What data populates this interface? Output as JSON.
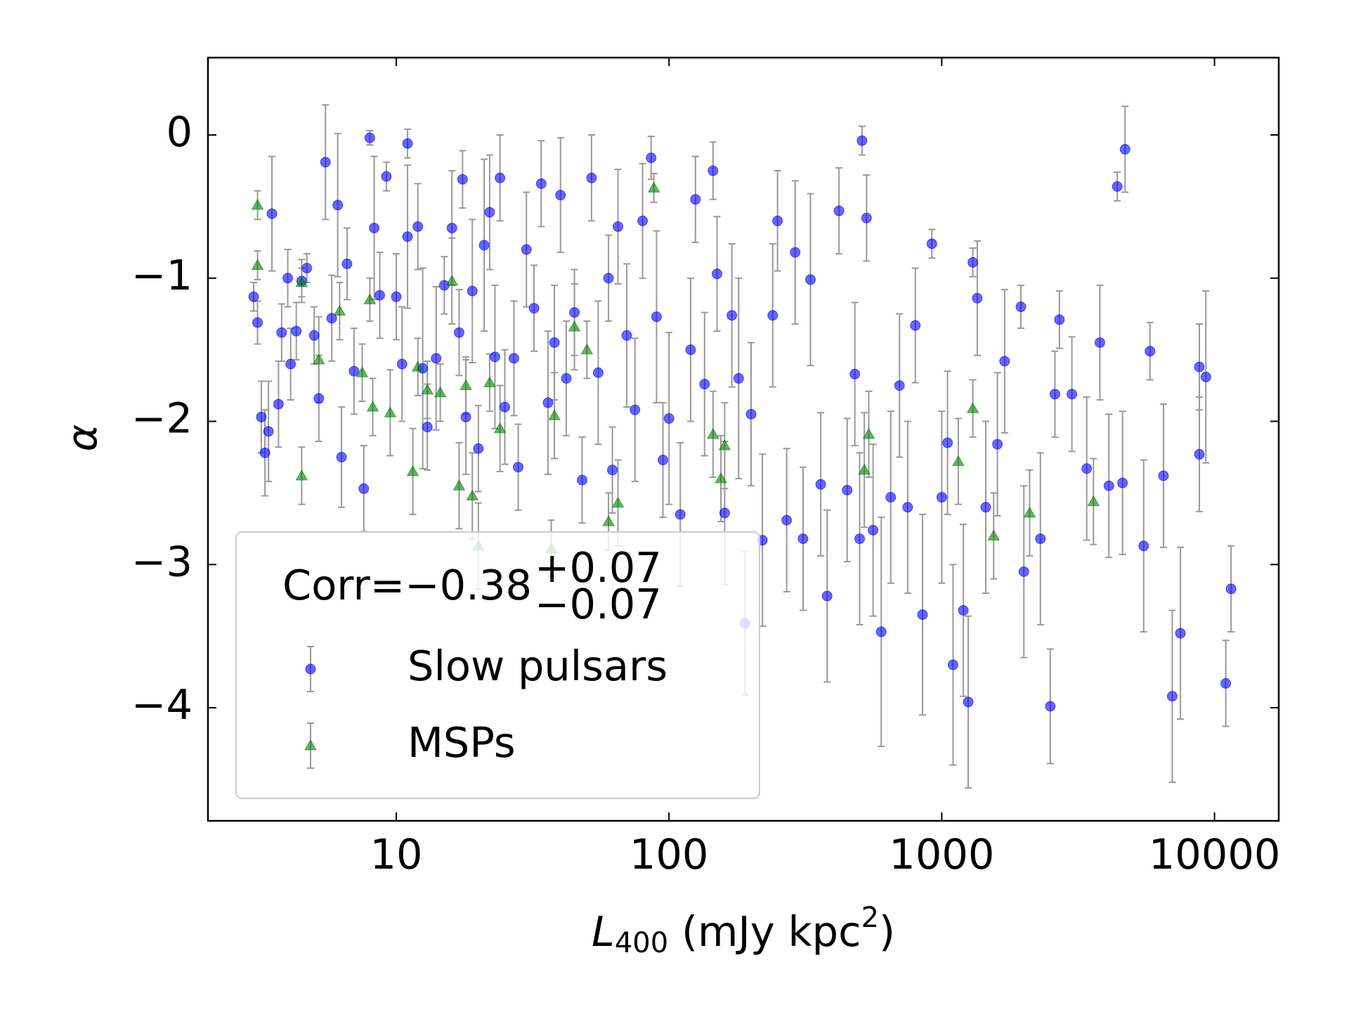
{
  "chart_data": {
    "type": "scatter",
    "xscale": "log",
    "xlabel": {
      "symbol": "L",
      "subscript": "400",
      "unit": " (mJy kpc",
      "superscript": "2",
      "close": ")"
    },
    "ylabel": "α",
    "xlim": [
      2.04,
      17200
    ],
    "ylim": [
      -4.79,
      0.54
    ],
    "xticks": [
      10,
      100,
      1000,
      10000
    ],
    "yticks": [
      0,
      {
        "value": -1,
        "label": "−1"
      },
      {
        "value": -2,
        "label": "−2"
      },
      {
        "value": -3,
        "label": "−3"
      },
      {
        "value": -4,
        "label": "−4"
      }
    ],
    "legend": "lower left",
    "legend_title": {
      "text": "Corr=−0.38",
      "upper": "+0.07",
      "lower": "−0.07"
    },
    "series": [
      {
        "name": "Slow pulsars",
        "color": "#0000ff",
        "marker": "circle",
        "x": [
          3.0,
          3.1,
          3.2,
          3.3,
          3.4,
          3.5,
          3.7,
          3.8,
          4.0,
          4.1,
          4.3,
          4.5,
          4.7,
          5.0,
          5.2,
          5.5,
          5.8,
          6.1,
          6.3,
          6.6,
          7.0,
          7.6,
          8.0,
          8.3,
          8.7,
          9.2,
          10,
          10.5,
          11,
          11,
          12,
          12.5,
          13,
          14,
          15,
          16,
          17,
          17.5,
          18,
          19,
          20,
          21,
          22,
          23,
          24,
          25,
          27,
          28,
          30,
          32,
          34,
          36,
          38,
          40,
          42,
          45,
          48,
          52,
          55,
          60,
          62,
          65,
          70,
          75,
          80,
          86,
          90,
          95,
          100,
          110,
          120,
          125,
          135,
          145,
          150,
          160,
          170,
          180,
          190,
          200,
          220,
          240,
          250,
          270,
          290,
          310,
          330,
          360,
          380,
          420,
          450,
          480,
          500,
          510,
          530,
          560,
          600,
          650,
          700,
          750,
          800,
          850,
          920,
          1000,
          1050,
          1100,
          1200,
          1250,
          1300,
          1350,
          1450,
          1600,
          1700,
          1950,
          2000,
          2300,
          2500,
          2600,
          2700,
          3000,
          3400,
          3800,
          4100,
          4400,
          4600,
          4700,
          5500,
          5800,
          6500,
          7000,
          7500,
          8800,
          8800,
          9300,
          11000,
          11500
        ],
        "values": [
          -1.13,
          -1.31,
          -1.97,
          -2.22,
          -2.07,
          -0.55,
          -1.88,
          -1.38,
          -1.0,
          -1.6,
          -1.37,
          -1.02,
          -0.93,
          -1.4,
          -1.84,
          -0.19,
          -1.28,
          -0.49,
          -2.25,
          -0.9,
          -1.65,
          -2.47,
          -0.02,
          -0.65,
          -1.12,
          -0.29,
          -1.13,
          -1.6,
          -0.06,
          -0.71,
          -0.64,
          -1.63,
          -2.04,
          -1.56,
          -1.05,
          -0.65,
          -1.38,
          -0.31,
          -1.97,
          -1.09,
          -2.19,
          -0.77,
          -0.54,
          -1.55,
          -0.3,
          -1.9,
          -1.56,
          -2.32,
          -0.8,
          -1.21,
          -0.34,
          -1.87,
          -1.45,
          -0.42,
          -1.7,
          -1.24,
          -2.41,
          -0.3,
          -1.66,
          -1.0,
          -2.34,
          -0.64,
          -1.4,
          -1.92,
          -0.6,
          -0.16,
          -1.27,
          -2.27,
          -1.98,
          -2.65,
          -1.5,
          -0.45,
          -1.74,
          -0.25,
          -0.97,
          -2.64,
          -1.26,
          -1.7,
          -3.41,
          -1.95,
          -2.83,
          -1.26,
          -0.6,
          -2.69,
          -0.82,
          -2.82,
          -1.01,
          -2.44,
          -3.22,
          -0.53,
          -2.48,
          -1.67,
          -2.82,
          -0.04,
          -0.58,
          -2.76,
          -3.47,
          -2.53,
          -1.75,
          -2.6,
          -1.33,
          -3.35,
          -0.76,
          -2.53,
          -2.15,
          -3.7,
          -3.32,
          -3.96,
          -0.89,
          -1.14,
          -2.6,
          -2.16,
          -1.58,
          -1.2,
          -3.05,
          -2.82,
          -3.99,
          -1.81,
          -1.29,
          -1.81,
          -2.33,
          -1.45,
          -2.45,
          -0.36,
          -2.43,
          -0.1,
          -2.87,
          -1.51,
          -2.38,
          -3.92,
          -3.48,
          -1.62,
          -2.23,
          -1.69,
          -3.83,
          -3.17
        ],
        "errors": [
          0.1,
          0.15,
          0.25,
          0.3,
          0.35,
          0.4,
          0.3,
          0.2,
          0.2,
          0.25,
          0.2,
          0.15,
          0.1,
          0.2,
          0.3,
          0.4,
          0.3,
          0.5,
          0.35,
          0.25,
          0.3,
          0.3,
          0.05,
          0.5,
          0.3,
          0.1,
          0.3,
          0.4,
          0.1,
          0.5,
          0.3,
          0.7,
          0.3,
          0.5,
          0.2,
          0.4,
          0.3,
          0.2,
          0.4,
          0.5,
          0.3,
          0.6,
          0.4,
          0.5,
          0.3,
          0.4,
          0.4,
          0.3,
          0.4,
          0.3,
          0.3,
          0.5,
          0.4,
          0.4,
          0.4,
          0.3,
          0.3,
          0.3,
          0.5,
          0.3,
          0.3,
          0.4,
          0.5,
          0.5,
          0.4,
          0.15,
          0.6,
          0.4,
          0.6,
          0.5,
          0.5,
          0.3,
          0.5,
          0.2,
          0.4,
          0.5,
          0.5,
          0.7,
          0.5,
          0.5,
          0.6,
          0.5,
          0.35,
          0.5,
          0.5,
          0.5,
          0.6,
          0.5,
          0.6,
          0.3,
          0.5,
          0.5,
          0.6,
          0.1,
          0.3,
          0.6,
          0.8,
          0.6,
          0.5,
          0.6,
          0.4,
          0.7,
          0.1,
          0.6,
          0.5,
          0.7,
          0.6,
          0.6,
          0.1,
          0.4,
          0.6,
          0.5,
          0.5,
          0.15,
          0.6,
          0.6,
          0.4,
          0.3,
          0.2,
          0.4,
          0.5,
          0.4,
          0.5,
          0.1,
          0.5,
          0.3,
          0.6,
          0.2,
          0.5,
          0.6,
          0.6,
          0.3,
          0.4,
          0.6,
          0.3,
          0.3
        ]
      },
      {
        "name": "MSPs",
        "color": "#008000",
        "marker": "triangle",
        "x": [
          3.1,
          3.1,
          4.5,
          4.5,
          5.2,
          6.2,
          7.5,
          8,
          8.2,
          9.5,
          11.5,
          12,
          13,
          14.5,
          16,
          17,
          18,
          19,
          20,
          22,
          24,
          37,
          38,
          45,
          50,
          60,
          65,
          88,
          145,
          155,
          160,
          520,
          540,
          1150,
          1300,
          1550,
          2100,
          3600
        ],
        "values": [
          -0.49,
          -0.91,
          -1.03,
          -2.38,
          -1.57,
          -1.23,
          -1.66,
          -1.15,
          -1.9,
          -1.94,
          -2.35,
          -1.62,
          -1.78,
          -1.8,
          -1.02,
          -2.45,
          -1.75,
          -2.52,
          -2.87,
          -1.73,
          -2.05,
          -2.89,
          -1.96,
          -1.34,
          -1.5,
          -2.7,
          -2.57,
          -0.37,
          -2.09,
          -2.4,
          -2.17,
          -2.34,
          -2.09,
          -2.28,
          -1.91,
          -2.8,
          -2.64,
          -2.56
        ],
        "errors": [
          0.1,
          0.1,
          0.1,
          0.2,
          0.3,
          0.2,
          0.2,
          0.15,
          0.2,
          0.3,
          0.3,
          0.2,
          0.2,
          0.2,
          0.3,
          0.3,
          0.2,
          0.3,
          0.3,
          0.2,
          0.3,
          0.2,
          0.3,
          0.3,
          0.2,
          0.2,
          0.3,
          0.1,
          0.3,
          0.3,
          0.3,
          0.4,
          0.3,
          0.3,
          0.2,
          0.3,
          0.3,
          0.3
        ]
      }
    ]
  }
}
